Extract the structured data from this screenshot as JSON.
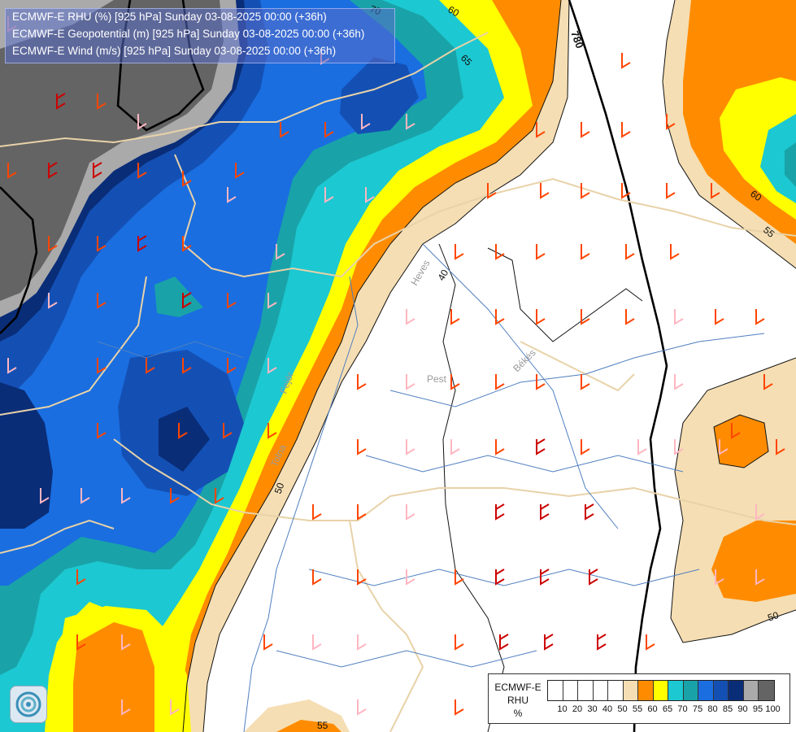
{
  "title": {
    "line1": "ECMWF-E RHU (%) [925 hPa] Sunday 03-08-2025 00:00 (+36h)",
    "line2": "ECMWF-E Geopotential (m) [925 hPa] Sunday 03-08-2025 00:00 (+36h)",
    "line3": "ECMWF-E Wind (m/s) [925 hPa] Sunday 03-08-2025 00:00 (+36h)"
  },
  "region_labels": {
    "heves": "Heves",
    "pest": "Pest",
    "bekes": "Békés",
    "fejer": "Fejér",
    "tolna": "Tolna"
  },
  "contour_labels": {
    "rhu_60_top": "60",
    "rhu_65_top": "65",
    "rhu_70_top": "70",
    "rhu_60_right": "60",
    "rhu_55_right": "55",
    "rhu_50_left": "50",
    "rhu_50_right": "50",
    "rhu_55_bottom": "55",
    "rhu_40_mid": "40",
    "geopotential_780": "780"
  },
  "legend": {
    "title_line1": "ECMWF-E",
    "title_line2": "RHU",
    "title_line3": "%",
    "colors": [
      "#ffffff",
      "#ffffff",
      "#ffffff",
      "#ffffff",
      "#ffffff",
      "#f5deb3",
      "#ff8c00",
      "#ffff00",
      "#1cc8d2",
      "#19a3a8",
      "#1a6ee0",
      "#1450b4",
      "#0a2d78",
      "#aaaaaa",
      "#646464"
    ],
    "ticks": [
      "10",
      "20",
      "30",
      "40",
      "50",
      "55",
      "60",
      "65",
      "70",
      "75",
      "80",
      "85",
      "90",
      "95",
      "100"
    ]
  },
  "colors": {
    "rhu_55": "#f5deb3",
    "rhu_60": "#ff8c00",
    "rhu_65": "#ffff00",
    "rhu_70": "#1cc8d2",
    "rhu_75": "#19a3a8",
    "rhu_80": "#1a6ee0",
    "rhu_85": "#1450b4",
    "rhu_90": "#0a2d78",
    "rhu_95": "#aaaaaa",
    "rhu_100": "#646464",
    "wind_light": "#ffb6c1",
    "wind_orange": "#ff4500",
    "wind_red": "#cc0000",
    "borders": "#e8d2a8",
    "rivers": "#4f7fc0"
  },
  "logo": {
    "icon": "ecmwf-swirl-icon"
  }
}
